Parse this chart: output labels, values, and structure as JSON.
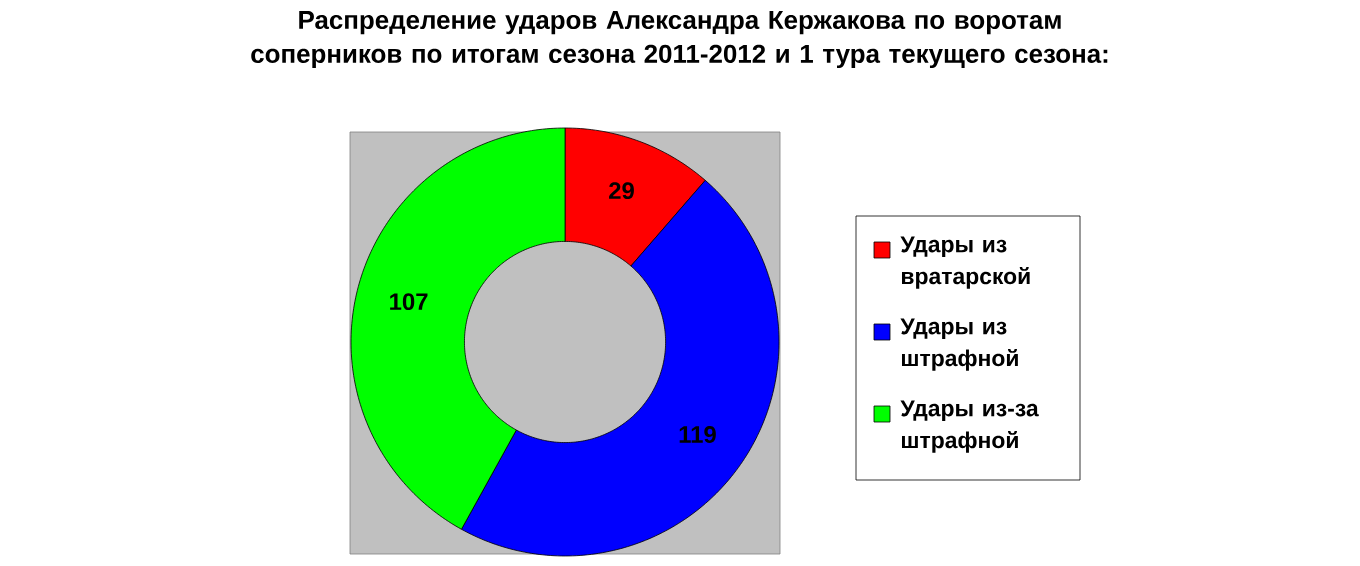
{
  "chart_data": {
    "type": "donut",
    "title": "Распределение ударов Александра Кержакова по воротам соперников по итогам сезона 2011-2012 и 1 тура текущего сезона:",
    "categories": [
      "Удары из вратарской",
      "Удары из штрафной",
      "Удары из-за штрафной"
    ],
    "values": [
      29,
      119,
      107
    ],
    "colors": [
      "#ff0000",
      "#0000ff",
      "#00ff00"
    ],
    "data_labels": true,
    "legend": "right"
  }
}
